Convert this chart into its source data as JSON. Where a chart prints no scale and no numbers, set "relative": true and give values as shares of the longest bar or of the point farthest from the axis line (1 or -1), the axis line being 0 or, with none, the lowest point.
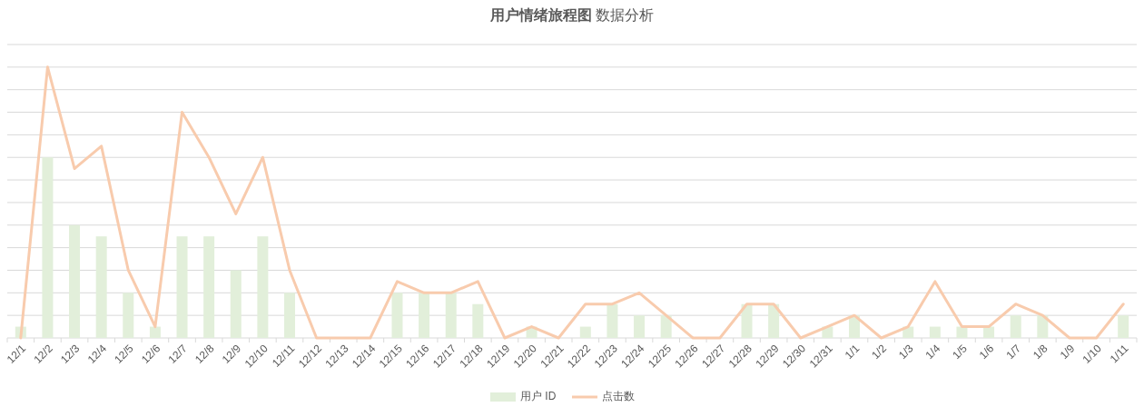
{
  "chart_data": {
    "type": "bar",
    "title": "用户情绪旅程图 数据分析",
    "relative": true,
    "grid": "y",
    "legend": "bottom",
    "categories": [
      "12/1",
      "12/2",
      "12/3",
      "12/4",
      "12/5",
      "12/6",
      "12/7",
      "12/8",
      "12/9",
      "12/10",
      "12/11",
      "12/12",
      "12/13",
      "12/14",
      "12/15",
      "12/16",
      "12/17",
      "12/18",
      "12/19",
      "12/20",
      "12/21",
      "12/22",
      "12/23",
      "12/24",
      "12/25",
      "12/26",
      "12/27",
      "12/28",
      "12/29",
      "12/30",
      "12/31",
      "1/1",
      "1/2",
      "1/3",
      "1/4",
      "1/5",
      "1/6",
      "1/7",
      "1/8",
      "1/9",
      "1/10",
      "1/11"
    ],
    "series": [
      {
        "name": "用户 ID",
        "color": "#e2efda",
        "values": [
          0.0417,
          0.6667,
          0.4167,
          0.375,
          0.1667,
          0.0417,
          0.375,
          0.375,
          0.25,
          0.375,
          0.1667,
          0,
          0,
          0,
          0.1667,
          0.1667,
          0.1667,
          0.125,
          0,
          0.0417,
          0,
          0.0417,
          0.125,
          0.0833,
          0.0833,
          0,
          0,
          0.125,
          0.125,
          0,
          0.0417,
          0.0833,
          0,
          0.0417,
          0.0417,
          0.0417,
          0.0417,
          0.0833,
          0.0833,
          0,
          0,
          0.0833
        ]
      },
      {
        "name": "点击数",
        "type": "line",
        "color": "#f8cbad",
        "values": [
          0,
          1,
          0.625,
          0.7083,
          0.25,
          0.0417,
          0.8333,
          0.6667,
          0.4583,
          0.6667,
          0.25,
          0,
          0,
          0,
          0.2083,
          0.1667,
          0.1667,
          0.2083,
          0,
          0.0417,
          0,
          0.125,
          0.125,
          0.1667,
          0.0833,
          0,
          0,
          0.125,
          0.125,
          0,
          0.0417,
          0.0833,
          0,
          0.0417,
          0.2083,
          0.0417,
          0.0417,
          0.125,
          0.0833,
          0,
          0,
          0.125
        ]
      }
    ]
  }
}
